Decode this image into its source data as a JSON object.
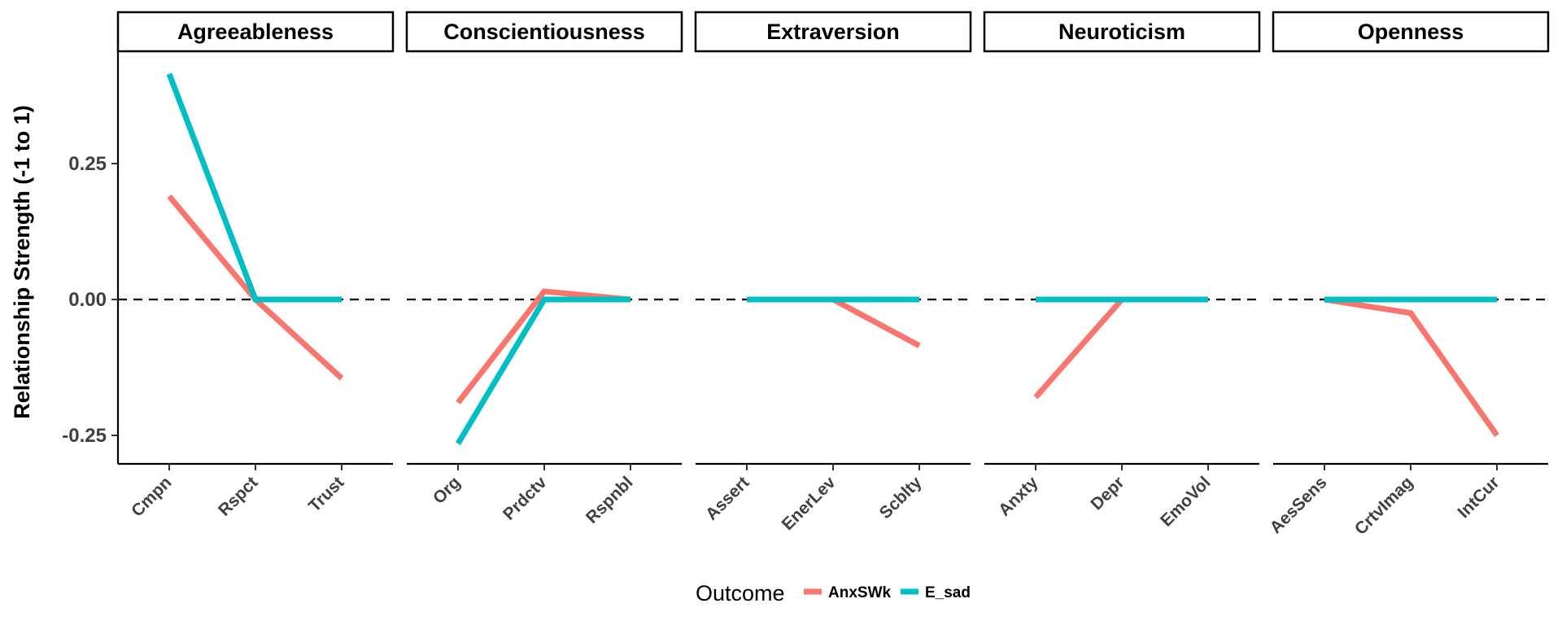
{
  "chart_data": {
    "type": "line",
    "facet_type": "faceted",
    "ylabel": "Relationship Strength (-1 to 1)",
    "xlabel": "",
    "ylim": [
      -0.3,
      0.46
    ],
    "yticks": [
      -0.25,
      0.0,
      0.25
    ],
    "ytick_labels": [
      "-0.25",
      "0.00",
      "0.25"
    ],
    "reference_line": {
      "y": 0,
      "style": "dashed"
    },
    "grid": false,
    "legend": {
      "title": "Outcome",
      "placement": "bottom",
      "entries": [
        {
          "name": "AnxSWk",
          "color": "#F8766D"
        },
        {
          "name": "E_sad",
          "color": "#00BFC4"
        }
      ]
    },
    "facets": [
      {
        "title": "Agreeableness",
        "categories": [
          "Cmpn",
          "Rspct",
          "Trust"
        ],
        "series": [
          {
            "name": "AnxSWk",
            "values": [
              0.19,
              0.0,
              -0.145
            ]
          },
          {
            "name": "E_sad",
            "values": [
              0.415,
              0.0,
              0.0
            ]
          }
        ]
      },
      {
        "title": "Conscientiousness",
        "categories": [
          "Org",
          "Prdctv",
          "Rspnbl"
        ],
        "series": [
          {
            "name": "AnxSWk",
            "values": [
              -0.19,
              0.015,
              0.0
            ]
          },
          {
            "name": "E_sad",
            "values": [
              -0.265,
              0.0,
              0.0
            ]
          }
        ]
      },
      {
        "title": "Extraversion",
        "categories": [
          "Assert",
          "EnerLev",
          "Scblty"
        ],
        "series": [
          {
            "name": "AnxSWk",
            "values": [
              0.0,
              0.0,
              -0.085
            ]
          },
          {
            "name": "E_sad",
            "values": [
              0.0,
              0.0,
              0.0
            ]
          }
        ]
      },
      {
        "title": "Neuroticism",
        "categories": [
          "Anxty",
          "Depr",
          "EmoVol"
        ],
        "series": [
          {
            "name": "AnxSWk",
            "values": [
              -0.18,
              0.0,
              0.0
            ]
          },
          {
            "name": "E_sad",
            "values": [
              0.0,
              0.0,
              0.0
            ]
          }
        ]
      },
      {
        "title": "Openness",
        "categories": [
          "AesSens",
          "CrtvImag",
          "IntCur"
        ],
        "series": [
          {
            "name": "AnxSWk",
            "values": [
              0.0,
              -0.025,
              -0.25
            ]
          },
          {
            "name": "E_sad",
            "values": [
              0.0,
              0.0,
              0.0
            ]
          }
        ]
      }
    ]
  }
}
